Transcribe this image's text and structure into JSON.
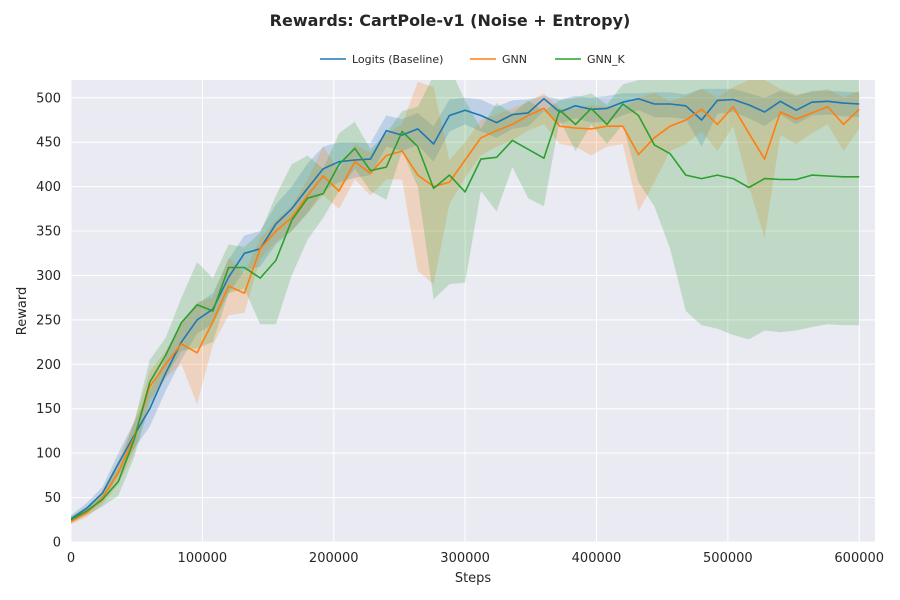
{
  "chart_data": {
    "type": "line",
    "title": "Rewards: CartPole-v1 (Noise + Entropy)",
    "xlabel": "Steps",
    "ylabel": "Reward",
    "xlim": [
      0,
      612000
    ],
    "ylim": [
      0,
      520
    ],
    "xticks": [
      0,
      100000,
      200000,
      300000,
      400000,
      500000,
      600000
    ],
    "yticks": [
      0,
      50,
      100,
      150,
      200,
      250,
      300,
      350,
      400,
      450,
      500
    ],
    "grid": true,
    "legend_position": "top-center",
    "x": [
      0,
      12000,
      24000,
      36000,
      48000,
      60000,
      72000,
      84000,
      96000,
      108000,
      120000,
      132000,
      144000,
      156000,
      168000,
      180000,
      192000,
      204000,
      216000,
      228000,
      240000,
      252000,
      264000,
      276000,
      288000,
      300000,
      312000,
      324000,
      336000,
      348000,
      360000,
      372000,
      384000,
      396000,
      408000,
      420000,
      432000,
      444000,
      456000,
      468000,
      480000,
      492000,
      504000,
      516000,
      528000,
      540000,
      552000,
      564000,
      576000,
      588000,
      600000
    ],
    "series": [
      {
        "name": "Logits (Baseline)",
        "color": "#1f77b4",
        "values": [
          26,
          38,
          55,
          88,
          120,
          150,
          190,
          225,
          250,
          262,
          298,
          325,
          330,
          358,
          375,
          398,
          420,
          428,
          430,
          431,
          463,
          458,
          465,
          448,
          480,
          486,
          480,
          472,
          481,
          483,
          499,
          484,
          491,
          487,
          488,
          495,
          499,
          493,
          493,
          491,
          475,
          497,
          498,
          492,
          484,
          496,
          486,
          495,
          496,
          494,
          493
        ],
        "lower": [
          22,
          32,
          45,
          75,
          105,
          130,
          170,
          205,
          235,
          245,
          280,
          305,
          310,
          335,
          350,
          370,
          395,
          405,
          410,
          413,
          445,
          440,
          447,
          428,
          462,
          470,
          462,
          455,
          465,
          468,
          485,
          470,
          477,
          472,
          473,
          480,
          486,
          478,
          478,
          476,
          445,
          482,
          484,
          477,
          468,
          481,
          470,
          480,
          481,
          479,
          478
        ],
        "upper": [
          30,
          44,
          62,
          100,
          135,
          170,
          208,
          245,
          268,
          280,
          318,
          345,
          350,
          380,
          400,
          426,
          445,
          450,
          450,
          449,
          480,
          476,
          483,
          468,
          498,
          500,
          498,
          490,
          497,
          498,
          502,
          498,
          502,
          500,
          502,
          505,
          505,
          506,
          506,
          504,
          510,
          510,
          510,
          505,
          500,
          508,
          502,
          508,
          508,
          507,
          506
        ]
      },
      {
        "name": "GNN",
        "color": "#ff7f0e",
        "values": [
          23,
          33,
          50,
          78,
          118,
          175,
          200,
          223,
          213,
          248,
          288,
          280,
          330,
          350,
          365,
          390,
          412,
          395,
          428,
          415,
          435,
          440,
          413,
          400,
          405,
          430,
          455,
          463,
          470,
          480,
          488,
          468,
          466,
          465,
          468,
          468,
          436,
          455,
          468,
          475,
          487,
          470,
          490,
          460,
          431,
          484,
          476,
          483,
          490,
          470,
          487
        ],
        "lower": [
          20,
          28,
          42,
          65,
          100,
          160,
          185,
          200,
          155,
          222,
          255,
          258,
          318,
          338,
          350,
          370,
          390,
          375,
          408,
          390,
          408,
          408,
          305,
          290,
          380,
          410,
          435,
          445,
          452,
          463,
          470,
          448,
          445,
          435,
          445,
          448,
          372,
          405,
          440,
          448,
          462,
          440,
          468,
          400,
          342,
          458,
          448,
          460,
          470,
          440,
          465
        ],
        "upper": [
          26,
          38,
          58,
          92,
          135,
          192,
          215,
          245,
          270,
          275,
          320,
          302,
          342,
          362,
          378,
          408,
          445,
          418,
          448,
          438,
          460,
          470,
          518,
          512,
          430,
          450,
          475,
          481,
          488,
          495,
          505,
          488,
          487,
          492,
          490,
          488,
          500,
          505,
          496,
          502,
          510,
          500,
          512,
          520,
          520,
          510,
          504,
          506,
          510,
          500,
          508
        ]
      },
      {
        "name": "GNN_K",
        "color": "#2ca02c",
        "values": [
          25,
          35,
          48,
          68,
          115,
          180,
          210,
          247,
          267,
          260,
          309,
          309,
          297,
          317,
          362,
          387,
          392,
          425,
          443,
          418,
          422,
          462,
          445,
          398,
          413,
          394,
          431,
          433,
          452,
          442,
          432,
          486,
          470,
          488,
          470,
          493,
          480,
          447,
          437,
          413,
          409,
          413,
          409,
          399,
          409,
          408,
          408,
          413,
          412,
          411,
          411
        ],
        "lower": [
          21,
          30,
          40,
          52,
          95,
          155,
          185,
          215,
          218,
          225,
          280,
          285,
          245,
          245,
          300,
          340,
          365,
          395,
          420,
          395,
          385,
          440,
          400,
          273,
          290,
          292,
          395,
          372,
          422,
          387,
          378,
          475,
          440,
          470,
          448,
          470,
          405,
          378,
          330,
          260,
          244,
          240,
          233,
          228,
          238,
          236,
          238,
          242,
          245,
          244,
          244
        ],
        "upper": [
          29,
          40,
          56,
          85,
          135,
          205,
          230,
          275,
          315,
          297,
          335,
          332,
          348,
          390,
          425,
          435,
          420,
          460,
          473,
          442,
          460,
          485,
          490,
          525,
          535,
          497,
          465,
          494,
          482,
          497,
          485,
          497,
          500,
          505,
          492,
          515,
          520,
          520,
          535,
          560,
          570,
          580,
          585,
          570,
          580,
          580,
          580,
          584,
          580,
          578,
          578
        ]
      }
    ]
  }
}
